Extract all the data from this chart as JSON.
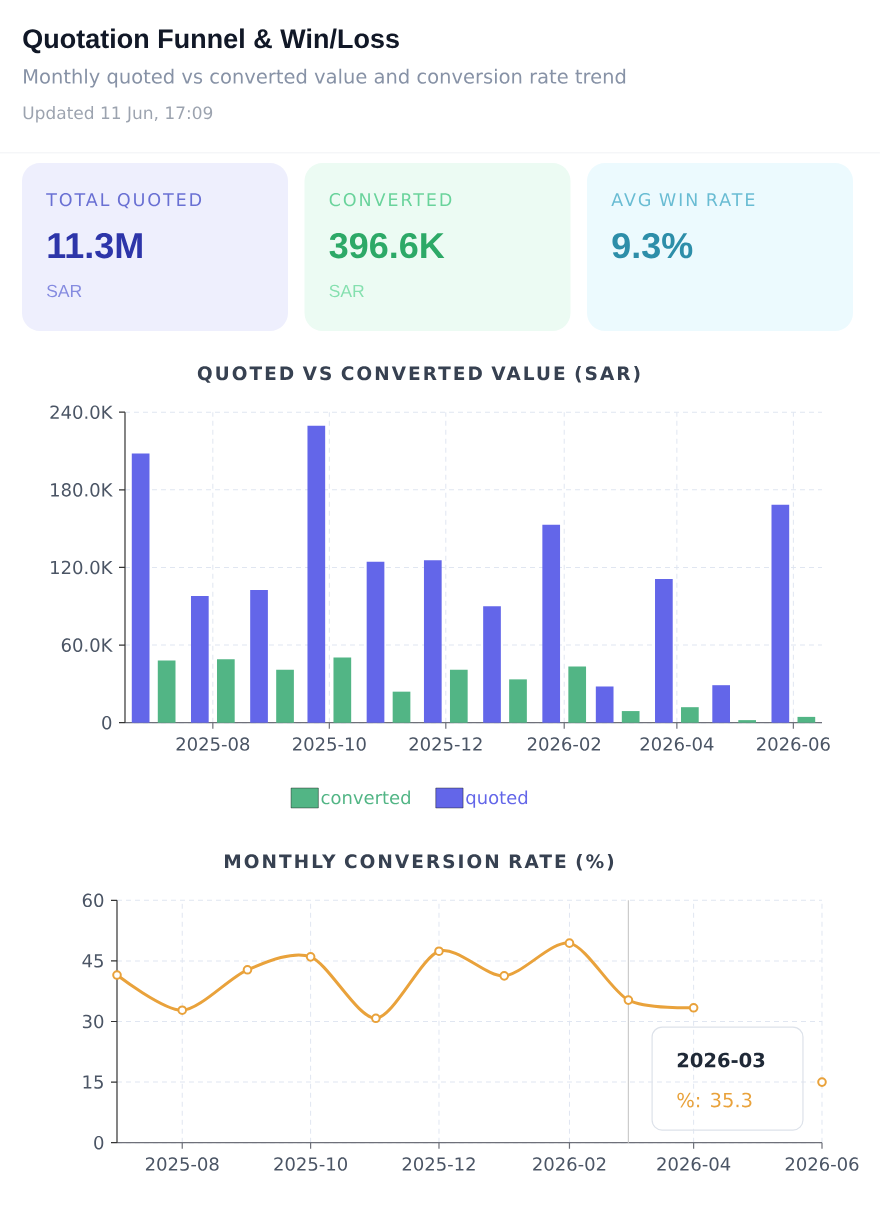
{
  "chart_data": [
    {
      "type": "other",
      "title": "Quotation Funnel & Win/Loss",
      "subtitle": "Monthly quoted vs converted value and conversion rate trend",
      "categories": [
        "TOTAL QUOTED",
        "CONVERTED",
        "AVG WIN RATE"
      ],
      "value_labels": [
        "11.3M",
        "396.6K",
        "9.3%"
      ],
      "colors": [
        "#eeeffd",
        "#ecfbf3",
        "#ecfafe"
      ],
      "annotations": [
        "Updated 11 Jun, 17:09",
        "SAR",
        "SAR"
      ]
    },
    {
      "type": "bar",
      "title": "QUOTED VS CONVERTED VALUE (SAR)",
      "x": [
        "2025-07",
        "2025-08",
        "2025-09",
        "2025-10",
        "2025-11",
        "2025-12",
        "2026-01",
        "2026-02",
        "2026-03",
        "2026-04",
        "2026-05",
        "2026-06"
      ],
      "series": [
        {
          "name": "quoted",
          "color": "#6366e9",
          "values": [
            208000,
            98000,
            102500,
            229500,
            124500,
            125500,
            90000,
            153000,
            28000,
            111000,
            29000,
            168500
          ]
        },
        {
          "name": "converted",
          "color": "#52b585",
          "values": [
            48000,
            49000,
            41000,
            50500,
            24000,
            41000,
            33500,
            43500,
            9000,
            12000,
            2000,
            4500
          ]
        }
      ],
      "xlim": [
        "2025-06-16",
        "2026-06-16"
      ],
      "xticks": [
        "2025-08",
        "2025-10",
        "2025-12",
        "2026-02",
        "2026-04",
        "2026-06"
      ],
      "ylim": [
        0,
        240000
      ],
      "yticks": [
        0,
        {
          "value": 60000,
          "label": "60.0K"
        },
        {
          "value": 120000,
          "label": "120.0K"
        },
        {
          "value": 180000,
          "label": "180.0K"
        },
        {
          "value": 240000,
          "label": "240.0K"
        }
      ],
      "grid": true,
      "legend": "bottom"
    },
    {
      "type": "line",
      "title": "MONTHLY CONVERSION RATE (%)",
      "x": [
        "2025-07",
        "2025-08",
        "2025-09",
        "2025-10",
        "2025-11",
        "2025-12",
        "2026-01",
        "2026-02",
        "2026-03",
        "2026-04",
        "2026-05",
        "2026-06"
      ],
      "series": [
        {
          "color": "#e9a23b",
          "values": [
            41.5,
            32.8,
            42.8,
            46.0,
            30.8,
            47.4,
            41.3,
            49.4,
            35.3,
            33.4,
            null,
            15.0
          ]
        }
      ],
      "xlim": [
        "2025-07",
        "2026-06"
      ],
      "xticks": [
        "2025-08",
        "2025-10",
        "2025-12",
        "2026-02",
        "2026-04",
        "2026-06"
      ],
      "ylim": [
        0,
        60
      ],
      "yticks": [
        0,
        15,
        30,
        45,
        60
      ],
      "grid": true,
      "marker": "circle",
      "line_style": "solid",
      "ref_lines": [
        {
          "axis": "x",
          "value": "2026-03",
          "color": "#cccccc"
        }
      ],
      "annotations": [
        "2026-03",
        "%: 35.3"
      ]
    }
  ]
}
